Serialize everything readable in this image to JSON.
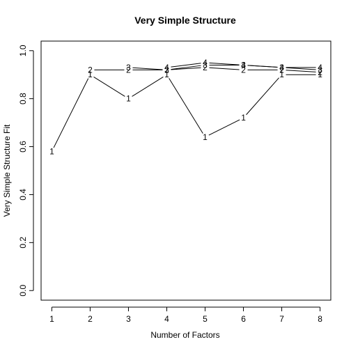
{
  "chart_data": {
    "type": "line",
    "title": "Very Simple Structure",
    "xlabel": "Number of Factors",
    "ylabel": "Very Simple Structure Fit",
    "xlim": [
      0.72,
      8.28
    ],
    "ylim": [
      -0.04,
      1.04
    ],
    "x": [
      1,
      2,
      3,
      4,
      5,
      6,
      7,
      8
    ],
    "x_ticks": [
      "1",
      "2",
      "3",
      "4",
      "5",
      "6",
      "7",
      "8"
    ],
    "y_ticks": [
      "0.0",
      "0.2",
      "0.4",
      "0.6",
      "0.8",
      "1.0"
    ],
    "series": [
      {
        "name": "1",
        "x": [
          1,
          2,
          3,
          4,
          5,
          6,
          7,
          8
        ],
        "values": [
          0.58,
          0.9,
          0.8,
          0.9,
          0.64,
          0.72,
          0.9,
          0.9
        ]
      },
      {
        "name": "2",
        "x": [
          2,
          3,
          4,
          5,
          6,
          7,
          8
        ],
        "values": [
          0.92,
          0.92,
          0.92,
          0.93,
          0.92,
          0.92,
          0.91
        ]
      },
      {
        "name": "3",
        "x": [
          3,
          4,
          5,
          6,
          7,
          8
        ],
        "values": [
          0.93,
          0.92,
          0.94,
          0.94,
          0.93,
          0.92
        ]
      },
      {
        "name": "4",
        "x": [
          4,
          5,
          6,
          7,
          8
        ],
        "values": [
          0.93,
          0.95,
          0.94,
          0.93,
          0.93
        ]
      }
    ],
    "grid": false,
    "legend": "none"
  }
}
